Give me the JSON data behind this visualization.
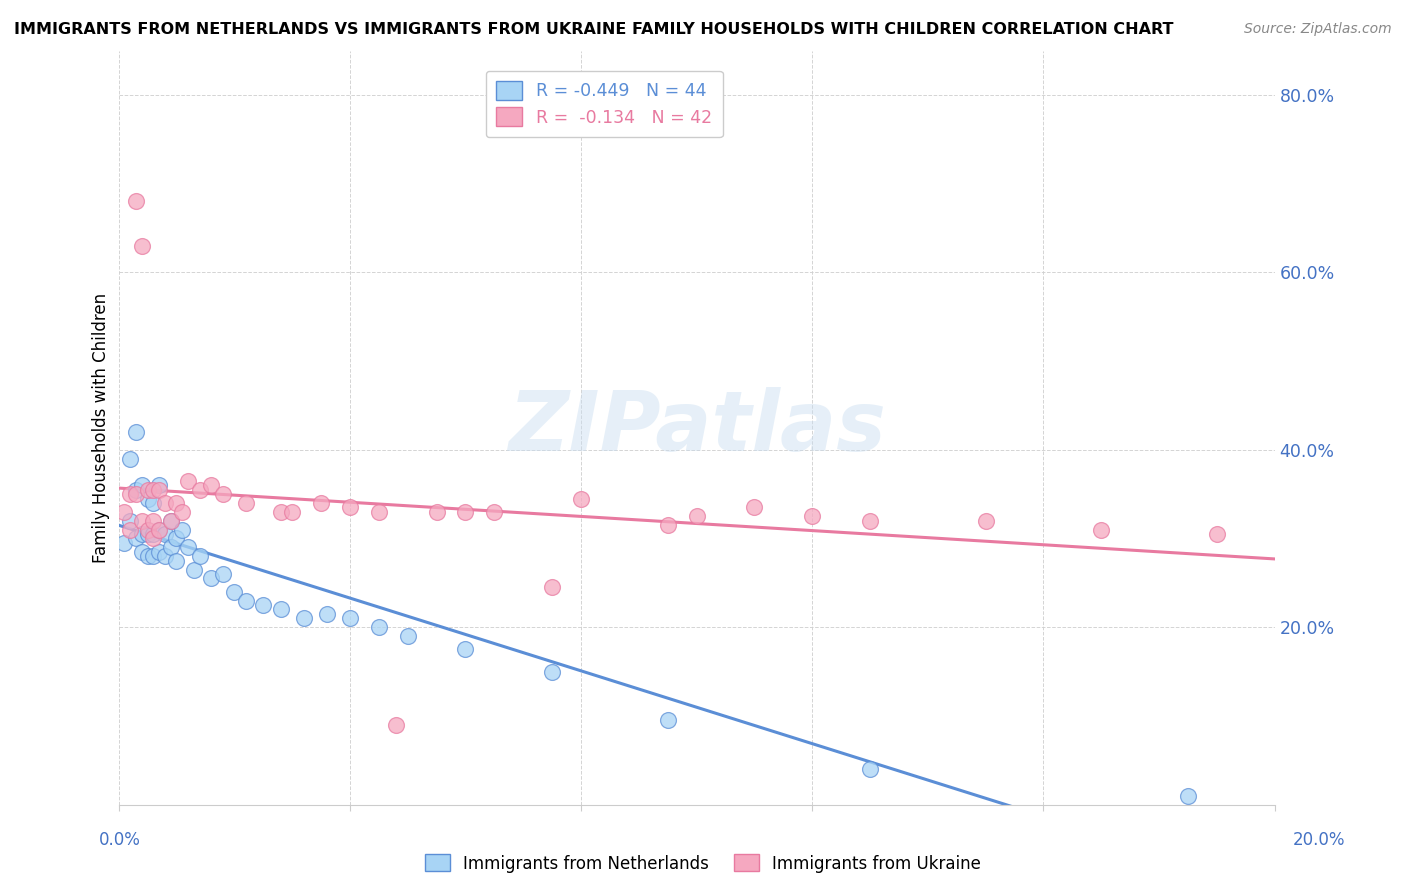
{
  "title": "IMMIGRANTS FROM NETHERLANDS VS IMMIGRANTS FROM UKRAINE FAMILY HOUSEHOLDS WITH CHILDREN CORRELATION CHART",
  "source": "Source: ZipAtlas.com",
  "ylabel": "Family Households with Children",
  "y_tick_labels": [
    "",
    "20.0%",
    "40.0%",
    "60.0%",
    "80.0%"
  ],
  "y_tick_values": [
    0.0,
    0.2,
    0.4,
    0.6,
    0.8
  ],
  "xlim": [
    0,
    0.2
  ],
  "ylim": [
    0,
    0.85
  ],
  "watermark": "ZIPatlas",
  "legend_netherlands": "R = -0.449   N = 44",
  "legend_ukraine": "R =  -0.134   N = 42",
  "color_netherlands": "#A8D4F5",
  "color_ukraine": "#F5A8C0",
  "line_color_netherlands": "#5B8ED6",
  "line_color_ukraine": "#E87AA0",
  "netherlands_x": [
    0.001,
    0.002,
    0.002,
    0.003,
    0.003,
    0.003,
    0.004,
    0.004,
    0.004,
    0.005,
    0.005,
    0.005,
    0.006,
    0.006,
    0.006,
    0.007,
    0.007,
    0.007,
    0.008,
    0.008,
    0.009,
    0.009,
    0.01,
    0.01,
    0.011,
    0.012,
    0.013,
    0.014,
    0.016,
    0.018,
    0.02,
    0.022,
    0.025,
    0.028,
    0.032,
    0.036,
    0.04,
    0.045,
    0.05,
    0.06,
    0.075,
    0.095,
    0.13,
    0.185
  ],
  "netherlands_y": [
    0.295,
    0.39,
    0.32,
    0.42,
    0.355,
    0.3,
    0.36,
    0.305,
    0.285,
    0.345,
    0.305,
    0.28,
    0.34,
    0.305,
    0.28,
    0.36,
    0.31,
    0.285,
    0.305,
    0.28,
    0.32,
    0.29,
    0.3,
    0.275,
    0.31,
    0.29,
    0.265,
    0.28,
    0.255,
    0.26,
    0.24,
    0.23,
    0.225,
    0.22,
    0.21,
    0.215,
    0.21,
    0.2,
    0.19,
    0.175,
    0.15,
    0.095,
    0.04,
    0.01
  ],
  "ukraine_x": [
    0.001,
    0.002,
    0.002,
    0.003,
    0.003,
    0.004,
    0.004,
    0.005,
    0.005,
    0.006,
    0.006,
    0.006,
    0.007,
    0.007,
    0.008,
    0.009,
    0.01,
    0.011,
    0.012,
    0.014,
    0.016,
    0.018,
    0.022,
    0.028,
    0.035,
    0.045,
    0.055,
    0.065,
    0.08,
    0.095,
    0.11,
    0.13,
    0.15,
    0.17,
    0.19,
    0.03,
    0.04,
    0.06,
    0.075,
    0.1,
    0.12,
    0.048
  ],
  "ukraine_y": [
    0.33,
    0.35,
    0.31,
    0.68,
    0.35,
    0.63,
    0.32,
    0.355,
    0.31,
    0.355,
    0.32,
    0.3,
    0.355,
    0.31,
    0.34,
    0.32,
    0.34,
    0.33,
    0.365,
    0.355,
    0.36,
    0.35,
    0.34,
    0.33,
    0.34,
    0.33,
    0.33,
    0.33,
    0.345,
    0.315,
    0.335,
    0.32,
    0.32,
    0.31,
    0.305,
    0.33,
    0.335,
    0.33,
    0.245,
    0.325,
    0.325,
    0.09
  ]
}
